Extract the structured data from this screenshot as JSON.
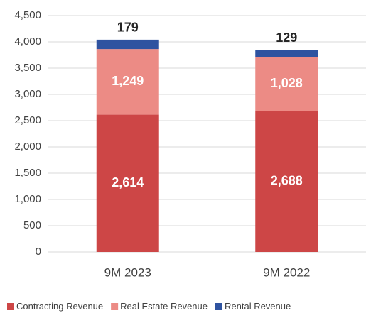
{
  "chart_data": {
    "type": "stacked_bar",
    "categories": [
      "9M 2023",
      "9M 2022"
    ],
    "series": [
      {
        "name": "Contracting Revenue",
        "color": "#cd4646",
        "values": [
          2614,
          2688
        ],
        "value_labels": [
          "2,614",
          "2,688"
        ]
      },
      {
        "name": "Real Estate Revenue",
        "color": "#ec8b85",
        "values": [
          1249,
          1028
        ],
        "value_labels": [
          "1,249",
          "1,028"
        ]
      },
      {
        "name": "Rental Revenue",
        "color": "#2f53a0",
        "values": [
          179,
          129
        ]
      }
    ],
    "ylim": [
      0,
      4500
    ],
    "yticks": [
      0,
      500,
      {
        "value": 1000,
        "label": "1,000"
      },
      {
        "value": 1500,
        "label": "1,500"
      },
      {
        "value": 2000,
        "label": "2,000"
      },
      {
        "value": 2500,
        "label": "2,500"
      },
      {
        "value": 3000,
        "label": "3,000"
      },
      {
        "value": 3500,
        "label": "3,500"
      },
      {
        "value": 4000,
        "label": "4,000"
      },
      {
        "value": 4500,
        "label": "4,500"
      }
    ],
    "grid": true,
    "legend": "bottom"
  }
}
